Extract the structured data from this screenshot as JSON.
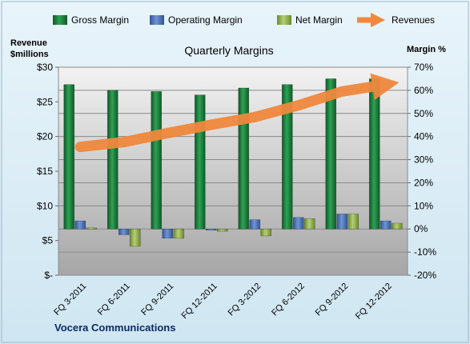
{
  "chart_data": {
    "type": "bar",
    "title": "Quarterly Margins",
    "left_axis_label_line1": "Revenue",
    "left_axis_label_line2": "$millions",
    "right_axis_label": "Margin %",
    "footer": "Vocera Communications",
    "categories": [
      "FQ 3-2011",
      "FQ 6-2011",
      "FQ 9-2011",
      "FQ 12-2011",
      "FQ 3-2012",
      "FQ 6-2012",
      "FQ 9-2012",
      "FQ 12-2012"
    ],
    "left_ticks": [
      "$30",
      "$25",
      "$20",
      "$15",
      "$10",
      "$5",
      "$-"
    ],
    "right_ticks": [
      "70%",
      "60%",
      "50%",
      "40%",
      "30%",
      "20%",
      "10%",
      "0%",
      "-10%",
      "-20%"
    ],
    "ylim_left": [
      0,
      30
    ],
    "ylim_right": [
      -20,
      70
    ],
    "series": [
      {
        "name": "Gross Margin",
        "axis": "right",
        "values": [
          62.5,
          60.0,
          59.5,
          58.0,
          61.0,
          62.5,
          65.0,
          65.0
        ]
      },
      {
        "name": "Operating Margin",
        "axis": "right",
        "values": [
          3.5,
          -2.5,
          -4.0,
          -0.5,
          4.0,
          5.0,
          6.5,
          3.5
        ]
      },
      {
        "name": "Net Margin",
        "axis": "right",
        "values": [
          0.5,
          -7.5,
          -4.0,
          -1.0,
          -3.0,
          4.5,
          6.5,
          2.5
        ]
      }
    ],
    "trend": {
      "name": "Revenues",
      "axis": "left",
      "values": [
        18.5,
        19.2,
        20.5,
        21.7,
        22.8,
        24.5,
        26.5,
        27.5
      ]
    },
    "grid": true,
    "legend_position": "top",
    "colors": {
      "gross": "#1a7a3a",
      "operating": "#4a73b3",
      "net": "#8fae4c",
      "revenue": "#f0883d",
      "plot_top": "#efefef",
      "plot_bottom": "#a9a9a9",
      "background": "#d9ecf6"
    }
  }
}
